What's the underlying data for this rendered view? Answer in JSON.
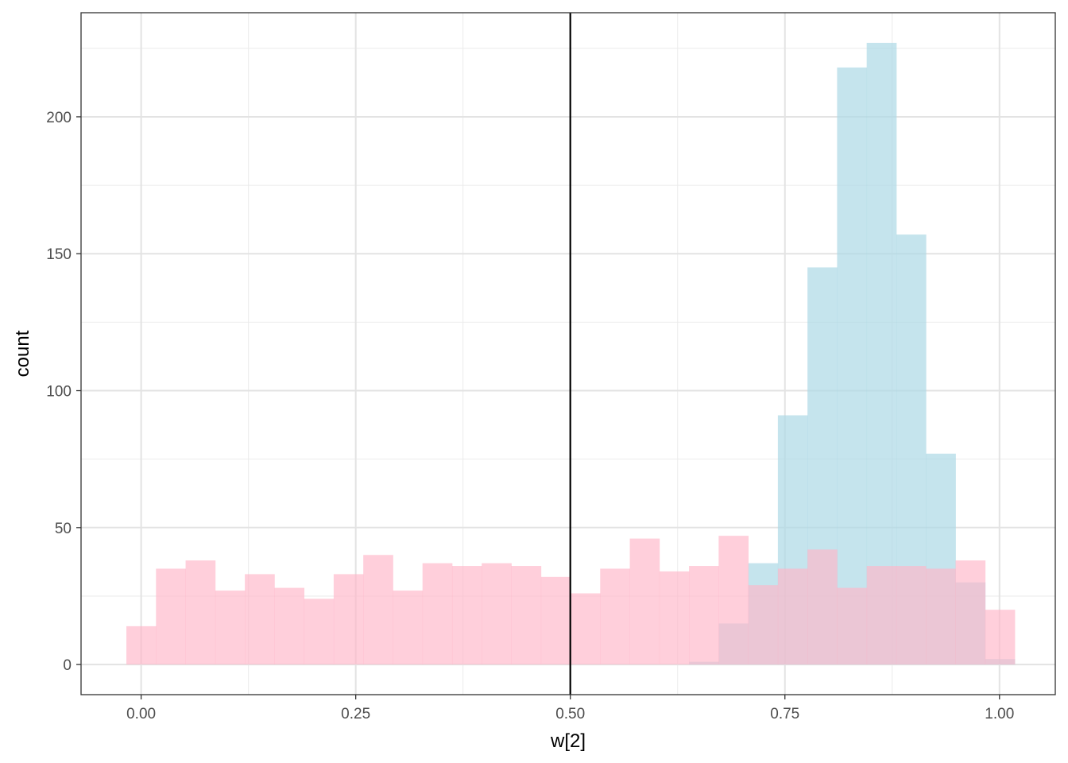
{
  "chart_data": {
    "type": "bar",
    "subtype": "overlaid-histogram",
    "xlabel": "w[2]",
    "ylabel": "count",
    "xlim": [
      -0.07,
      1.065
    ],
    "ylim": [
      -11,
      238
    ],
    "x_ticks": [
      {
        "value": 0.0,
        "label": "0.00"
      },
      {
        "value": 0.25,
        "label": "0.25"
      },
      {
        "value": 0.5,
        "label": "0.50"
      },
      {
        "value": 0.75,
        "label": "0.75"
      },
      {
        "value": 1.0,
        "label": "1.00"
      }
    ],
    "y_ticks": [
      {
        "value": 0,
        "label": "0"
      },
      {
        "value": 50,
        "label": "50"
      },
      {
        "value": 100,
        "label": "100"
      },
      {
        "value": 150,
        "label": "150"
      },
      {
        "value": 200,
        "label": "200"
      }
    ],
    "grid": true,
    "bin_width": 0.0345,
    "bin_start": -0.0172,
    "vline": {
      "x": 0.5,
      "color": "#000000"
    },
    "series": [
      {
        "color": "#add8e6",
        "opacity": 0.7,
        "values": [
          0,
          0,
          0,
          0,
          0,
          0,
          0,
          0,
          0,
          0,
          0,
          0,
          0,
          0,
          0,
          0,
          0,
          0,
          0,
          1,
          15,
          37,
          91,
          145,
          218,
          227,
          157,
          77,
          30,
          2
        ]
      },
      {
        "color": "#ffb6c8",
        "opacity": 0.65,
        "values": [
          14,
          35,
          38,
          27,
          33,
          28,
          24,
          33,
          40,
          27,
          37,
          36,
          37,
          36,
          32,
          26,
          35,
          46,
          34,
          36,
          47,
          29,
          35,
          42,
          28,
          36,
          36,
          35,
          38,
          20
        ]
      }
    ]
  }
}
